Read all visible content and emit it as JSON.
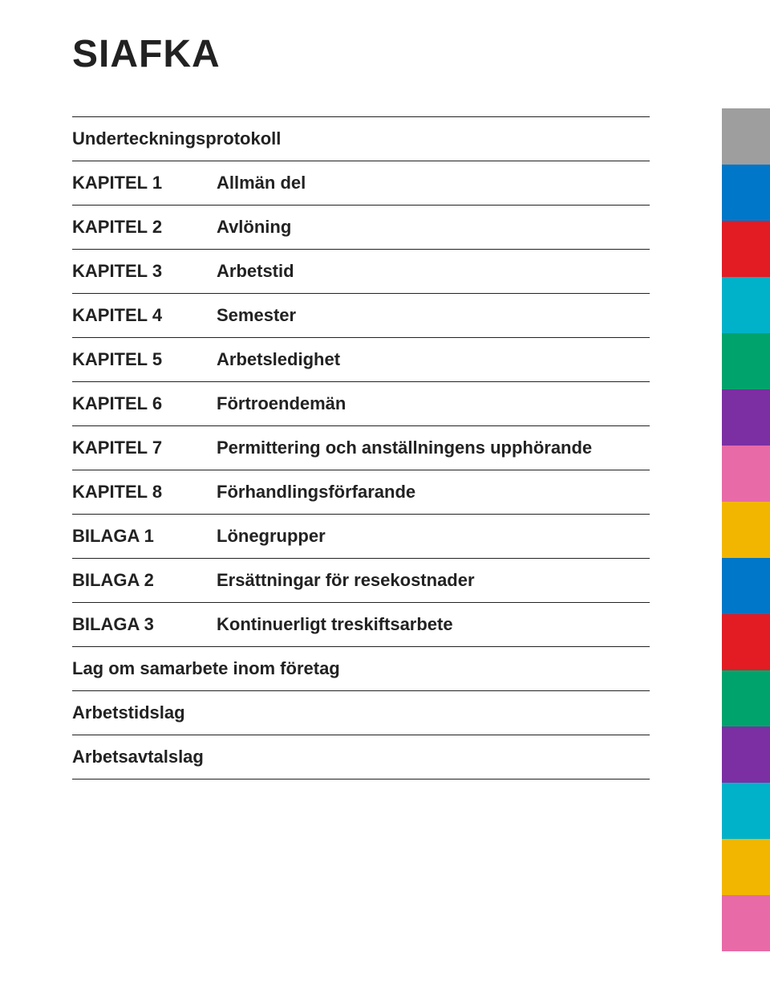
{
  "title": "SIAFKA",
  "rows": [
    {
      "chapter": "",
      "label": "Underteckningsprotokoll",
      "single": true
    },
    {
      "chapter": "KAPITEL 1",
      "label": "Allmän del"
    },
    {
      "chapter": "KAPITEL 2",
      "label": "Avlöning"
    },
    {
      "chapter": "KAPITEL 3",
      "label": "Arbetstid"
    },
    {
      "chapter": "KAPITEL 4",
      "label": "Semester"
    },
    {
      "chapter": "KAPITEL 5",
      "label": "Arbetsledighet"
    },
    {
      "chapter": "KAPITEL 6",
      "label": "Förtroendemän"
    },
    {
      "chapter": "KAPITEL 7",
      "label": "Permittering och anställningens upphörande"
    },
    {
      "chapter": "KAPITEL 8",
      "label": "Förhandlingsförfarande"
    },
    {
      "chapter": "BILAGA 1",
      "label": "Lönegrupper"
    },
    {
      "chapter": "BILAGA 2",
      "label": "Ersättningar för resekostnader"
    },
    {
      "chapter": "BILAGA 3",
      "label": "Kontinuerligt treskiftsarbete"
    },
    {
      "chapter": "",
      "label": "Lag om samarbete inom företag",
      "single": true
    },
    {
      "chapter": "",
      "label": "Arbetstidslag",
      "single": true
    },
    {
      "chapter": "",
      "label": "Arbetsavtalslag",
      "single": true
    }
  ],
  "tab_colors": [
    "#9e9e9e",
    "#0077c8",
    "#e31b23",
    "#00b2c9",
    "#00a36c",
    "#7b2fa3",
    "#e86aa6",
    "#f2b600",
    "#0077c8",
    "#e31b23",
    "#00a36c",
    "#7b2fa3",
    "#00b2c9",
    "#f2b600",
    "#e86aa6"
  ]
}
